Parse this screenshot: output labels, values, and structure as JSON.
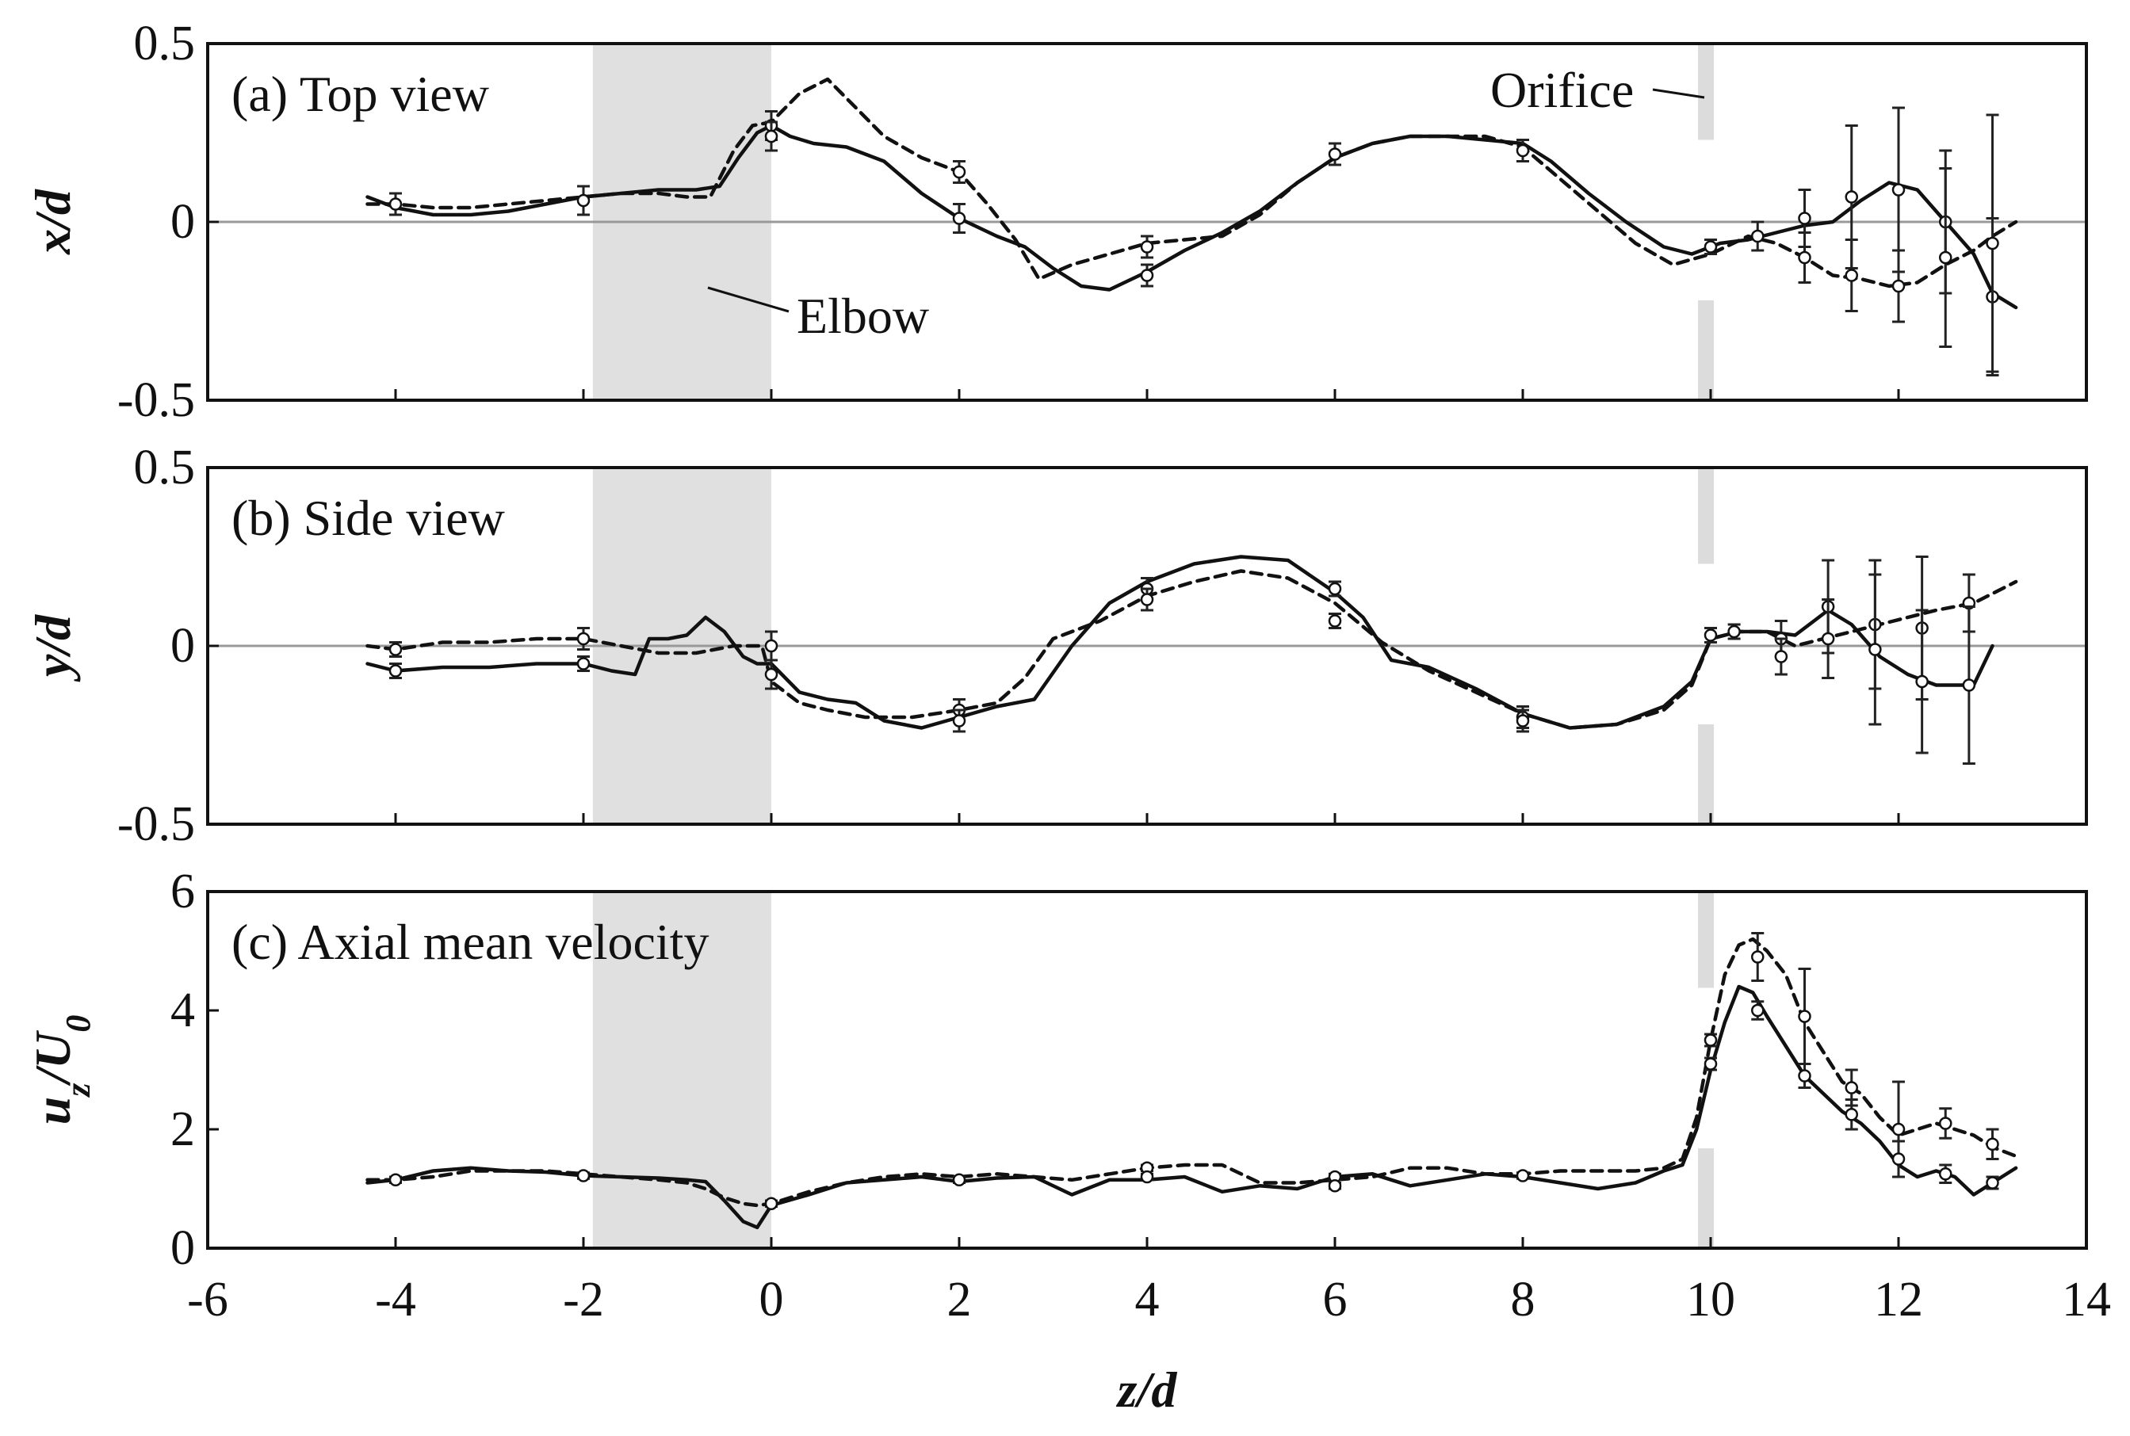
{
  "figure": {
    "xlabel": "z/d",
    "x_ticks": [
      "-6",
      "-4",
      "-2",
      "0",
      "2",
      "4",
      "6",
      "8",
      "10",
      "12",
      "14"
    ],
    "annotations": {
      "elbow": "Elbow",
      "orifice": "Orifice"
    }
  },
  "chart_data": [
    {
      "type": "line",
      "panel_label": "(a) Top view",
      "ylabel": "x/d",
      "xlim": [
        -6,
        14
      ],
      "ylim": [
        -0.5,
        0.5
      ],
      "y_ticks": [
        "0.5",
        "0",
        "-0.5"
      ],
      "zero_line": true,
      "shaded_regions": [
        {
          "name": "elbow",
          "x": [
            -1.9,
            0
          ]
        }
      ],
      "orifice_x": 9.95,
      "series": [
        {
          "style": "solid",
          "x": [
            -4.3,
            -4.0,
            -3.6,
            -3.2,
            -2.8,
            -2.4,
            -2.0,
            -1.6,
            -1.2,
            -0.8,
            -0.55,
            -0.35,
            -0.15,
            0.0,
            0.2,
            0.45,
            0.8,
            1.2,
            1.6,
            2.0,
            2.4,
            2.7,
            3.0,
            3.3,
            3.6,
            4.0,
            4.4,
            4.8,
            5.2,
            5.6,
            6.0,
            6.4,
            6.8,
            7.2,
            7.6,
            8.0,
            8.3,
            8.7,
            9.1,
            9.5,
            9.8,
            10.1,
            10.4,
            10.7,
            11.0,
            11.3,
            11.6,
            11.9,
            12.2,
            12.5,
            12.8,
            13.0,
            13.25
          ],
          "y": [
            0.07,
            0.04,
            0.02,
            0.02,
            0.03,
            0.05,
            0.07,
            0.08,
            0.09,
            0.09,
            0.1,
            0.18,
            0.25,
            0.27,
            0.24,
            0.22,
            0.21,
            0.17,
            0.08,
            0.01,
            -0.04,
            -0.07,
            -0.13,
            -0.18,
            -0.19,
            -0.14,
            -0.08,
            -0.03,
            0.03,
            0.11,
            0.18,
            0.22,
            0.24,
            0.24,
            0.23,
            0.22,
            0.17,
            0.08,
            0.0,
            -0.07,
            -0.09,
            -0.06,
            -0.05,
            -0.03,
            -0.01,
            0.0,
            0.06,
            0.11,
            0.09,
            0.0,
            -0.09,
            -0.2,
            -0.24
          ]
        },
        {
          "style": "dashed",
          "x": [
            -4.3,
            -4.0,
            -3.6,
            -3.2,
            -2.8,
            -2.4,
            -2.0,
            -1.6,
            -1.2,
            -0.9,
            -0.65,
            -0.4,
            -0.2,
            0.0,
            0.3,
            0.6,
            0.9,
            1.2,
            1.6,
            2.0,
            2.3,
            2.6,
            2.85,
            3.2,
            3.6,
            4.0,
            4.4,
            4.8,
            5.2,
            5.6,
            6.0,
            6.4,
            6.8,
            7.2,
            7.6,
            8.0,
            8.4,
            8.8,
            9.2,
            9.6,
            10.0,
            10.4,
            10.7,
            11.0,
            11.3,
            11.6,
            11.9,
            12.2,
            12.5,
            12.8,
            13.0,
            13.25
          ],
          "y": [
            0.05,
            0.05,
            0.04,
            0.04,
            0.05,
            0.06,
            0.07,
            0.08,
            0.08,
            0.07,
            0.07,
            0.2,
            0.27,
            0.28,
            0.36,
            0.4,
            0.32,
            0.24,
            0.18,
            0.14,
            0.05,
            -0.05,
            -0.16,
            -0.12,
            -0.09,
            -0.06,
            -0.05,
            -0.04,
            0.02,
            0.11,
            0.18,
            0.22,
            0.24,
            0.24,
            0.24,
            0.21,
            0.12,
            0.03,
            -0.06,
            -0.12,
            -0.09,
            -0.04,
            -0.06,
            -0.1,
            -0.15,
            -0.16,
            -0.18,
            -0.17,
            -0.12,
            -0.08,
            -0.04,
            0.0
          ]
        }
      ],
      "markers": [
        {
          "x": -4.0,
          "y": 0.05,
          "err": 0.03
        },
        {
          "x": -2.0,
          "y": 0.06,
          "err": 0.04
        },
        {
          "x": 0.0,
          "y": 0.27,
          "err": 0.04
        },
        {
          "x": 0.0,
          "y": 0.24,
          "err": 0.04
        },
        {
          "x": 2.0,
          "y": 0.14,
          "err": 0.03
        },
        {
          "x": 2.0,
          "y": 0.01,
          "err": 0.04
        },
        {
          "x": 4.0,
          "y": -0.07,
          "err": 0.03
        },
        {
          "x": 4.0,
          "y": -0.15,
          "err": 0.03
        },
        {
          "x": 6.0,
          "y": 0.19,
          "err": 0.03
        },
        {
          "x": 8.0,
          "y": 0.2,
          "err": 0.03
        },
        {
          "x": 10.0,
          "y": -0.07,
          "err": 0.02
        },
        {
          "x": 10.5,
          "y": -0.04,
          "err": 0.04
        },
        {
          "x": 11.0,
          "y": 0.01,
          "err": 0.08
        },
        {
          "x": 11.0,
          "y": -0.1,
          "err": 0.07
        },
        {
          "x": 11.5,
          "y": 0.07,
          "err": 0.2
        },
        {
          "x": 11.5,
          "y": -0.15,
          "err": 0.1
        },
        {
          "x": 12.0,
          "y": 0.09,
          "err": 0.23
        },
        {
          "x": 12.0,
          "y": -0.18,
          "err": 0.1
        },
        {
          "x": 12.5,
          "y": 0.0,
          "err": 0.2
        },
        {
          "x": 12.5,
          "y": -0.1,
          "err": 0.25
        },
        {
          "x": 13.0,
          "y": -0.21,
          "err": 0.22
        },
        {
          "x": 13.0,
          "y": -0.06,
          "err": 0.36
        }
      ]
    },
    {
      "type": "line",
      "panel_label": "(b) Side view",
      "ylabel": "y/d",
      "xlim": [
        -6,
        14
      ],
      "ylim": [
        -0.5,
        0.5
      ],
      "y_ticks": [
        "0.5",
        "0",
        "-0.5"
      ],
      "zero_line": true,
      "shaded_regions": [
        {
          "name": "elbow",
          "x": [
            -1.9,
            0
          ]
        }
      ],
      "orifice_x": 9.95,
      "series": [
        {
          "style": "solid",
          "x": [
            -4.3,
            -4.0,
            -3.5,
            -3.0,
            -2.5,
            -2.0,
            -1.7,
            -1.45,
            -1.3,
            -1.1,
            -0.9,
            -0.7,
            -0.5,
            -0.3,
            -0.15,
            0.0,
            0.3,
            0.6,
            0.9,
            1.2,
            1.6,
            2.0,
            2.4,
            2.8,
            3.2,
            3.6,
            4.0,
            4.5,
            5.0,
            5.5,
            6.0,
            6.3,
            6.6,
            7.0,
            7.5,
            8.0,
            8.5,
            9.0,
            9.5,
            9.8,
            10.0,
            10.3,
            10.6,
            10.9,
            11.1,
            11.25,
            11.5,
            11.8,
            12.1,
            12.4,
            12.8,
            13.0
          ],
          "y": [
            -0.05,
            -0.07,
            -0.06,
            -0.06,
            -0.05,
            -0.05,
            -0.07,
            -0.08,
            0.02,
            0.02,
            0.03,
            0.08,
            0.04,
            -0.03,
            -0.05,
            -0.05,
            -0.13,
            -0.15,
            -0.16,
            -0.21,
            -0.23,
            -0.2,
            -0.17,
            -0.15,
            0.0,
            0.12,
            0.18,
            0.23,
            0.25,
            0.24,
            0.15,
            0.08,
            -0.04,
            -0.06,
            -0.12,
            -0.19,
            -0.23,
            -0.22,
            -0.17,
            -0.1,
            0.02,
            0.04,
            0.04,
            0.03,
            0.07,
            0.1,
            0.06,
            -0.03,
            -0.08,
            -0.11,
            -0.11,
            0.0
          ]
        },
        {
          "style": "dashed",
          "x": [
            -4.3,
            -4.0,
            -3.5,
            -3.0,
            -2.5,
            -2.0,
            -1.6,
            -1.2,
            -0.8,
            -0.4,
            -0.1,
            0.0,
            0.3,
            0.6,
            1.0,
            1.5,
            2.0,
            2.4,
            2.7,
            3.0,
            3.5,
            4.0,
            4.5,
            5.0,
            5.5,
            6.0,
            6.5,
            7.0,
            7.5,
            8.0,
            8.5,
            9.0,
            9.5,
            9.8,
            10.0,
            10.3,
            10.6,
            10.9,
            11.2,
            11.5,
            11.8,
            12.1,
            12.4,
            12.8,
            13.1,
            13.25
          ],
          "y": [
            0.0,
            -0.01,
            0.01,
            0.01,
            0.02,
            0.02,
            0.0,
            -0.02,
            -0.02,
            0.0,
            0.0,
            -0.1,
            -0.16,
            -0.18,
            -0.2,
            -0.2,
            -0.18,
            -0.16,
            -0.09,
            0.02,
            0.07,
            0.14,
            0.18,
            0.21,
            0.19,
            0.12,
            0.01,
            -0.07,
            -0.13,
            -0.19,
            -0.23,
            -0.22,
            -0.18,
            -0.11,
            0.02,
            0.04,
            0.04,
            0.0,
            0.02,
            0.04,
            0.06,
            0.08,
            0.1,
            0.12,
            0.16,
            0.18
          ]
        }
      ],
      "markers": [
        {
          "x": -4.0,
          "y": -0.01,
          "err": 0.02
        },
        {
          "x": -4.0,
          "y": -0.07,
          "err": 0.02
        },
        {
          "x": -2.0,
          "y": 0.02,
          "err": 0.03
        },
        {
          "x": -2.0,
          "y": -0.05,
          "err": 0.02
        },
        {
          "x": 0.0,
          "y": 0.0,
          "err": 0.04
        },
        {
          "x": 0.0,
          "y": -0.08,
          "err": 0.04
        },
        {
          "x": 2.0,
          "y": -0.18,
          "err": 0.03
        },
        {
          "x": 2.0,
          "y": -0.21,
          "err": 0.03
        },
        {
          "x": 4.0,
          "y": 0.16,
          "err": 0.03
        },
        {
          "x": 4.0,
          "y": 0.13,
          "err": 0.03
        },
        {
          "x": 6.0,
          "y": 0.16,
          "err": 0.02
        },
        {
          "x": 6.0,
          "y": 0.07,
          "err": 0.02
        },
        {
          "x": 8.0,
          "y": -0.2,
          "err": 0.03
        },
        {
          "x": 8.0,
          "y": -0.21,
          "err": 0.03
        },
        {
          "x": 10.0,
          "y": 0.03,
          "err": 0.02
        },
        {
          "x": 10.25,
          "y": 0.04,
          "err": 0.02
        },
        {
          "x": 10.75,
          "y": 0.02,
          "err": 0.05
        },
        {
          "x": 10.75,
          "y": -0.03,
          "err": 0.05
        },
        {
          "x": 11.25,
          "y": 0.11,
          "err": 0.13
        },
        {
          "x": 11.25,
          "y": 0.02,
          "err": 0.11
        },
        {
          "x": 11.75,
          "y": 0.06,
          "err": 0.18
        },
        {
          "x": 11.75,
          "y": -0.01,
          "err": 0.21
        },
        {
          "x": 12.25,
          "y": 0.05,
          "err": 0.2
        },
        {
          "x": 12.25,
          "y": -0.1,
          "err": 0.2
        },
        {
          "x": 12.75,
          "y": 0.12,
          "err": 0.08
        },
        {
          "x": 12.75,
          "y": -0.11,
          "err": 0.22
        }
      ]
    },
    {
      "type": "line",
      "panel_label": "(c) Axial mean velocity",
      "ylabel": "uz/U0",
      "xlim": [
        -6,
        14
      ],
      "ylim": [
        0,
        6
      ],
      "y_ticks": [
        "6",
        "4",
        "2",
        "0"
      ],
      "zero_line": false,
      "shaded_regions": [
        {
          "name": "elbow",
          "x": [
            -1.9,
            0
          ]
        }
      ],
      "orifice_x": 9.95,
      "series": [
        {
          "style": "solid",
          "x": [
            -4.3,
            -4.0,
            -3.6,
            -3.2,
            -2.8,
            -2.4,
            -2.0,
            -1.6,
            -1.2,
            -0.9,
            -0.7,
            -0.5,
            -0.3,
            -0.15,
            0.0,
            0.4,
            0.8,
            1.2,
            1.6,
            2.0,
            2.4,
            2.8,
            3.2,
            3.6,
            4.0,
            4.4,
            4.8,
            5.2,
            5.6,
            6.0,
            6.4,
            6.8,
            7.2,
            7.6,
            8.0,
            8.4,
            8.8,
            9.2,
            9.5,
            9.7,
            9.85,
            10.0,
            10.15,
            10.3,
            10.45,
            10.6,
            10.8,
            11.0,
            11.2,
            11.4,
            11.6,
            11.8,
            12.0,
            12.2,
            12.4,
            12.6,
            12.8,
            13.0,
            13.25
          ],
          "y": [
            1.1,
            1.15,
            1.3,
            1.35,
            1.3,
            1.28,
            1.22,
            1.2,
            1.18,
            1.15,
            1.12,
            0.8,
            0.45,
            0.35,
            0.72,
            0.9,
            1.1,
            1.15,
            1.2,
            1.12,
            1.18,
            1.2,
            0.9,
            1.15,
            1.15,
            1.2,
            0.95,
            1.05,
            1.0,
            1.2,
            1.25,
            1.05,
            1.15,
            1.25,
            1.2,
            1.1,
            1.0,
            1.1,
            1.3,
            1.4,
            2.0,
            3.0,
            3.8,
            4.4,
            4.3,
            3.9,
            3.4,
            2.9,
            2.6,
            2.3,
            2.1,
            1.8,
            1.4,
            1.2,
            1.3,
            1.2,
            0.9,
            1.1,
            1.35
          ]
        },
        {
          "style": "dashed",
          "x": [
            -4.3,
            -4.0,
            -3.6,
            -3.2,
            -2.8,
            -2.4,
            -2.0,
            -1.6,
            -1.2,
            -0.9,
            -0.7,
            -0.5,
            -0.3,
            -0.15,
            0.0,
            0.4,
            0.8,
            1.2,
            1.6,
            2.0,
            2.4,
            2.8,
            3.2,
            3.6,
            4.0,
            4.4,
            4.8,
            5.2,
            5.6,
            6.0,
            6.4,
            6.8,
            7.2,
            7.6,
            8.0,
            8.4,
            8.8,
            9.2,
            9.5,
            9.7,
            9.85,
            10.0,
            10.15,
            10.3,
            10.45,
            10.6,
            10.8,
            11.0,
            11.2,
            11.4,
            11.6,
            11.8,
            12.0,
            12.2,
            12.4,
            12.6,
            12.8,
            13.0,
            13.25
          ],
          "y": [
            1.15,
            1.15,
            1.2,
            1.3,
            1.3,
            1.3,
            1.25,
            1.2,
            1.15,
            1.1,
            1.0,
            0.85,
            0.75,
            0.72,
            0.75,
            0.95,
            1.1,
            1.2,
            1.25,
            1.2,
            1.25,
            1.2,
            1.15,
            1.25,
            1.35,
            1.4,
            1.4,
            1.1,
            1.1,
            1.15,
            1.2,
            1.35,
            1.35,
            1.25,
            1.25,
            1.3,
            1.3,
            1.3,
            1.35,
            1.5,
            2.2,
            3.5,
            4.6,
            5.1,
            5.2,
            5.0,
            4.6,
            3.8,
            3.3,
            2.8,
            2.6,
            2.2,
            1.9,
            2.0,
            2.1,
            2.0,
            1.9,
            1.7,
            1.55
          ]
        }
      ],
      "markers": [
        {
          "x": -4.0,
          "y": 1.15,
          "err": 0.05
        },
        {
          "x": -2.0,
          "y": 1.22,
          "err": 0.05
        },
        {
          "x": 0.0,
          "y": 0.75,
          "err": 0.05
        },
        {
          "x": 2.0,
          "y": 1.15,
          "err": 0.05
        },
        {
          "x": 4.0,
          "y": 1.35,
          "err": 0.05
        },
        {
          "x": 4.0,
          "y": 1.2,
          "err": 0.05
        },
        {
          "x": 6.0,
          "y": 1.2,
          "err": 0.05
        },
        {
          "x": 6.0,
          "y": 1.05,
          "err": 0.05
        },
        {
          "x": 8.0,
          "y": 1.22,
          "err": 0.05
        },
        {
          "x": 10.0,
          "y": 3.5,
          "err": 0.1
        },
        {
          "x": 10.0,
          "y": 3.1,
          "err": 0.1
        },
        {
          "x": 10.5,
          "y": 4.9,
          "err": 0.4
        },
        {
          "x": 10.5,
          "y": 4.0,
          "err": 0.15
        },
        {
          "x": 11.0,
          "y": 3.9,
          "err": 0.8
        },
        {
          "x": 11.0,
          "y": 2.9,
          "err": 0.2
        },
        {
          "x": 11.5,
          "y": 2.7,
          "err": 0.3
        },
        {
          "x": 11.5,
          "y": 2.25,
          "err": 0.25
        },
        {
          "x": 12.0,
          "y": 2.0,
          "err": 0.8
        },
        {
          "x": 12.0,
          "y": 1.5,
          "err": 0.3
        },
        {
          "x": 12.5,
          "y": 2.1,
          "err": 0.25
        },
        {
          "x": 12.5,
          "y": 1.25,
          "err": 0.15
        },
        {
          "x": 13.0,
          "y": 1.75,
          "err": 0.25
        },
        {
          "x": 13.0,
          "y": 1.1,
          "err": 0.1
        }
      ]
    }
  ]
}
